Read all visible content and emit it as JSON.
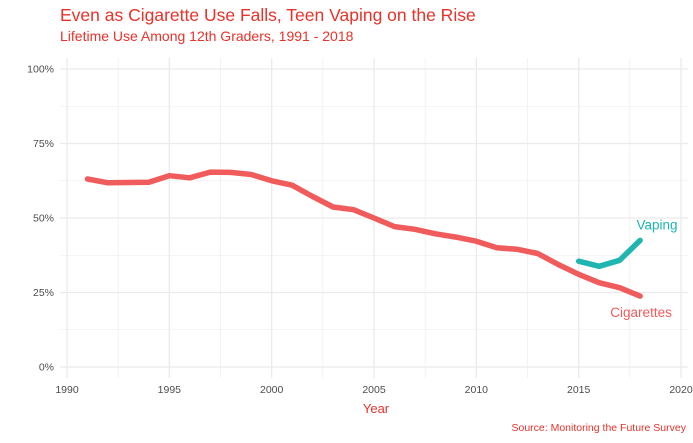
{
  "title": "Even as Cigarette Use Falls, Teen Vaping on the Rise",
  "subtitle": "Lifetime Use Among 12th Graders, 1991 - 2018",
  "caption": "Source: Monitoring the Future Survey",
  "colors": {
    "title": "#e8322a",
    "cigarettes": "#f05b5b",
    "vaping": "#1fb5b0",
    "grid": "#ebebeb",
    "tick": "#4d4d4d"
  },
  "chart_data": {
    "type": "line",
    "title": "Even as Cigarette Use Falls, Teen Vaping on the Rise",
    "subtitle": "Lifetime Use Among 12th Graders, 1991 - 2018",
    "xlabel": "Year",
    "ylabel": "",
    "xlim": [
      1990,
      2020
    ],
    "ylim": [
      0,
      100
    ],
    "x_ticks": [
      1990,
      1995,
      2000,
      2005,
      2010,
      2015,
      2020
    ],
    "y_ticks": [
      0,
      25,
      50,
      75,
      100
    ],
    "y_tick_labels": [
      "0%",
      "25%",
      "50%",
      "75%",
      "100%"
    ],
    "grid": true,
    "legend": "none (direct labels at line ends)",
    "series": [
      {
        "name": "Cigarettes",
        "color": "#f05b5b",
        "x": [
          1991,
          1992,
          1993,
          1994,
          1995,
          1996,
          1997,
          1998,
          1999,
          2000,
          2001,
          2002,
          2003,
          2004,
          2005,
          2006,
          2007,
          2008,
          2009,
          2010,
          2011,
          2012,
          2013,
          2014,
          2015,
          2016,
          2017,
          2018
        ],
        "y": [
          63.1,
          61.8,
          61.9,
          62.0,
          64.2,
          63.5,
          65.4,
          65.3,
          64.6,
          62.5,
          61.0,
          57.2,
          53.7,
          52.8,
          50.0,
          47.1,
          46.2,
          44.7,
          43.6,
          42.2,
          40.0,
          39.5,
          38.1,
          34.4,
          31.1,
          28.3,
          26.6,
          23.8
        ]
      },
      {
        "name": "Vaping",
        "color": "#1fb5b0",
        "x": [
          2015,
          2016,
          2017,
          2018
        ],
        "y": [
          35.5,
          33.8,
          35.8,
          42.5
        ]
      }
    ]
  }
}
